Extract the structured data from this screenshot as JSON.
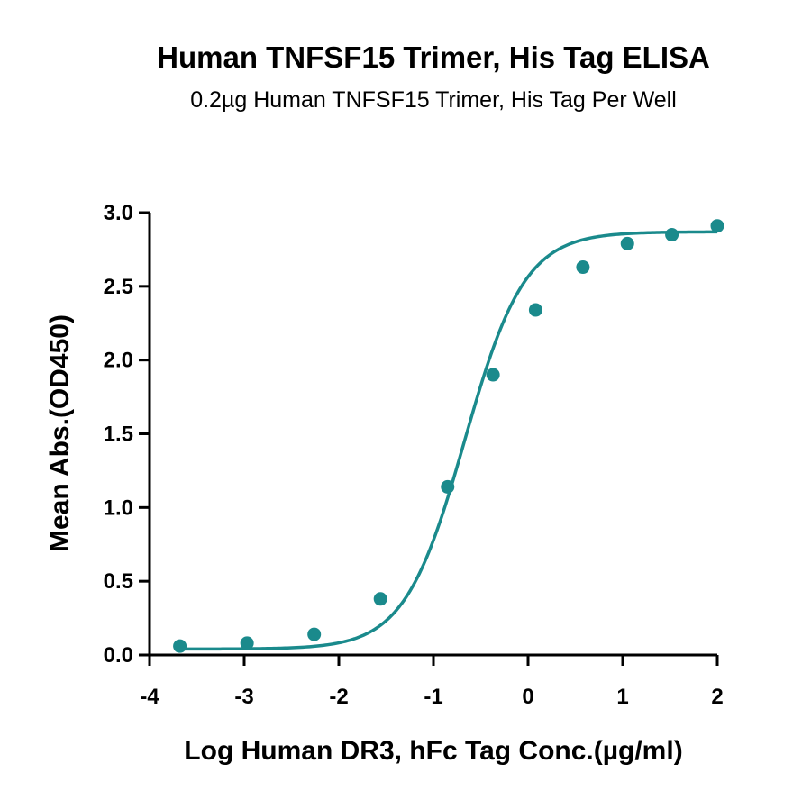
{
  "chart_data": {
    "type": "scatter",
    "title": "Human TNFSF15 Trimer, His Tag ELISA",
    "subtitle": "0.2µg Human TNFSF15 Trimer, His Tag Per Well",
    "xlabel": "Log Human DR3, hFc Tag Conc.(µg/ml)",
    "ylabel": "Mean Abs.(OD450)",
    "xlim": [
      -4,
      2
    ],
    "ylim": [
      0,
      3.0
    ],
    "x_ticks": [
      -4,
      -3,
      -2,
      -1,
      0,
      1,
      2
    ],
    "x_tick_labels": [
      "-4",
      "-3",
      "-2",
      "-1",
      "0",
      "1",
      "2"
    ],
    "y_ticks": [
      0,
      0.5,
      1.0,
      1.5,
      2.0,
      2.5,
      3.0
    ],
    "y_tick_labels": [
      "0.0",
      "0.5",
      "1.0",
      "1.5",
      "2.0",
      "2.5",
      "3.0"
    ],
    "grid": false,
    "series": [
      {
        "x": [
          -3.68,
          -2.97,
          -2.26,
          -1.56,
          -0.85,
          -0.37,
          0.08,
          0.58,
          1.05,
          1.52,
          2.0
        ],
        "y": [
          0.06,
          0.08,
          0.14,
          0.38,
          1.14,
          1.9,
          2.34,
          2.63,
          2.79,
          2.85,
          2.91
        ],
        "color": "#1a8a8c",
        "fit": {
          "model": "4PL",
          "bottom": 0.04,
          "top": 2.87,
          "log_ec50": -0.67,
          "hill_slope": 1.37,
          "x_range": [
            -3.68,
            2.0
          ]
        }
      }
    ]
  }
}
